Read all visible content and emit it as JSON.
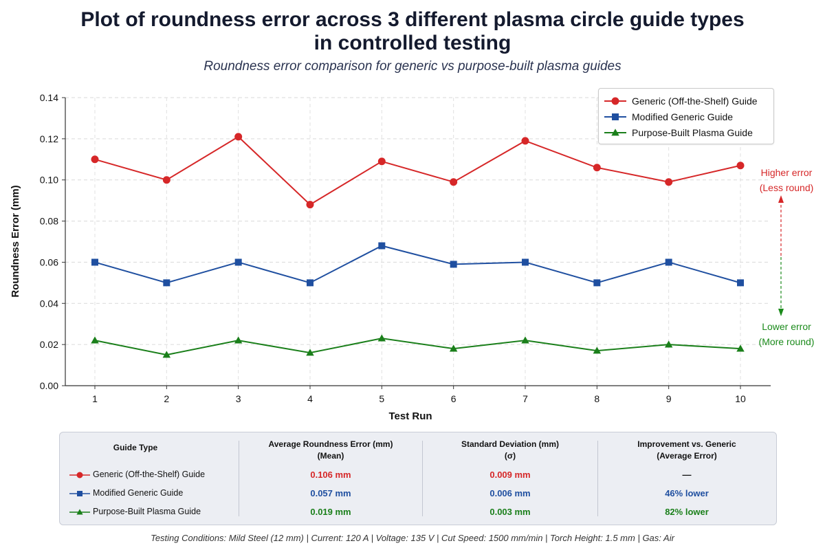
{
  "colors": {
    "generic": "#d62728",
    "modified": "#1f4fa0",
    "purpose": "#1a7f1a"
  },
  "chart_data": {
    "type": "line",
    "title": "Plot of roundness error across 3 different plasma circle guide types in controlled testing",
    "title_line1": "Plot of roundness error across 3 different plasma circle guide types",
    "title_line2": "in controlled testing",
    "subtitle": "Roundness error comparison for generic vs purpose-built plasma guides",
    "xlabel": "Test Run",
    "ylabel": "Roundness Error (mm)",
    "x": [
      1,
      2,
      3,
      4,
      5,
      6,
      7,
      8,
      9,
      10
    ],
    "x_tick_labels": [
      "1",
      "2",
      "3",
      "4",
      "5",
      "6",
      "7",
      "8",
      "9",
      "10"
    ],
    "ylim": [
      0,
      0.14
    ],
    "y_ticks": [
      0.0,
      0.02,
      0.04,
      0.06,
      0.08,
      0.1,
      0.12,
      0.14
    ],
    "y_tick_labels": [
      "0.00",
      "0.02",
      "0.04",
      "0.06",
      "0.08",
      "0.10",
      "0.12",
      "0.14"
    ],
    "grid": true,
    "legend_position": "top-right",
    "series": [
      {
        "name": "Generic (Off-the-Shelf) Guide",
        "color": "#d62728",
        "marker": "circle",
        "values": [
          0.11,
          0.1,
          0.121,
          0.088,
          0.109,
          0.099,
          0.119,
          0.106,
          0.099,
          0.107
        ]
      },
      {
        "name": "Modified Generic Guide",
        "color": "#1f4fa0",
        "marker": "square",
        "values": [
          0.06,
          0.05,
          0.06,
          0.05,
          0.068,
          0.059,
          0.06,
          0.05,
          0.06,
          0.05
        ]
      },
      {
        "name": "Purpose-Built Plasma Guide",
        "color": "#1a7f1a",
        "marker": "triangle",
        "values": [
          0.022,
          0.015,
          0.022,
          0.016,
          0.023,
          0.018,
          0.022,
          0.017,
          0.02,
          0.018
        ]
      }
    ],
    "annotations": {
      "high_line1": "Higher error",
      "high_line2": "(Less round)",
      "low_line1": "Lower error",
      "low_line2": "(More round)"
    }
  },
  "table": {
    "headers": {
      "guide_type": "Guide Type",
      "avg_line1": "Average Roundness Error (mm)",
      "avg_line2": "(Mean)",
      "std_line1": "Standard Deviation (mm)",
      "std_line2": "(σ)",
      "imp_line1": "Improvement vs. Generic",
      "imp_line2": "(Average Error)"
    },
    "rows": [
      {
        "name": "Generic (Off-the-Shelf) Guide",
        "avg": "0.106 mm",
        "std": "0.009 mm",
        "improvement": "—"
      },
      {
        "name": "Modified Generic Guide",
        "avg": "0.057 mm",
        "std": "0.006 mm",
        "improvement": "46% lower"
      },
      {
        "name": "Purpose-Built Plasma Guide",
        "avg": "0.019 mm",
        "std": "0.003 mm",
        "improvement": "82% lower"
      }
    ]
  },
  "footer": "Testing Conditions: Mild Steel (12 mm)  |  Current: 120 A  |  Voltage: 135 V  |  Cut Speed: 1500 mm/min  |  Torch Height: 1.5 mm  |  Gas: Air"
}
